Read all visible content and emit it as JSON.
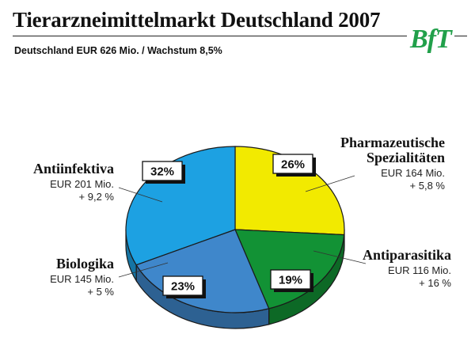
{
  "header": {
    "title": "Tierarzneimittelmarkt Deutschland 2007",
    "subtitle": "Deutschland EUR 626 Mio. / Wachstum 8,5%",
    "logo_text": "BfT"
  },
  "colors": {
    "logo": "#21a04a",
    "Antiinfektiva": "#1da1e2",
    "Pharmazeutische Spezialitäten": "#f2ea00",
    "Antiparasitika": "#129235",
    "Biologika": "#3f87cb"
  },
  "chart_data": {
    "type": "pie",
    "title": "Tierarzneimittelmarkt Deutschland 2007",
    "subtitle": "Deutschland EUR 626 Mio. / Wachstum 8,5%",
    "total": "EUR 626 Mio.",
    "slices": [
      {
        "key": "pharma",
        "name": "Pharmazeutische Spezialitäten",
        "name_lines": [
          "Pharmazeutische",
          "Spezialitäten"
        ],
        "percent": 26,
        "percent_label": "26%",
        "value_mio": 164,
        "value_label": "EUR 164 Mio.",
        "growth_label": "+ 5,8 %",
        "color": "#f2ea00"
      },
      {
        "key": "antiparasitika",
        "name": "Antiparasitika",
        "name_lines": [
          "Antiparasitika"
        ],
        "percent": 19,
        "percent_label": "19%",
        "value_mio": 116,
        "value_label": "EUR 116 Mio.",
        "growth_label": "+ 16 %",
        "color": "#129235"
      },
      {
        "key": "biologika",
        "name": "Biologika",
        "name_lines": [
          "Biologika"
        ],
        "percent": 23,
        "percent_label": "23%",
        "value_mio": 145,
        "value_label": "EUR 145 Mio.",
        "growth_label": "+ 5 %",
        "color": "#3f87cb"
      },
      {
        "key": "antiinfektiva",
        "name": "Antiinfektiva",
        "name_lines": [
          "Antiinfektiva"
        ],
        "percent": 32,
        "percent_label": "32%",
        "value_mio": 201,
        "value_label": "EUR 201 Mio.",
        "growth_label": "+ 9,2 %",
        "color": "#1da1e2"
      }
    ]
  }
}
